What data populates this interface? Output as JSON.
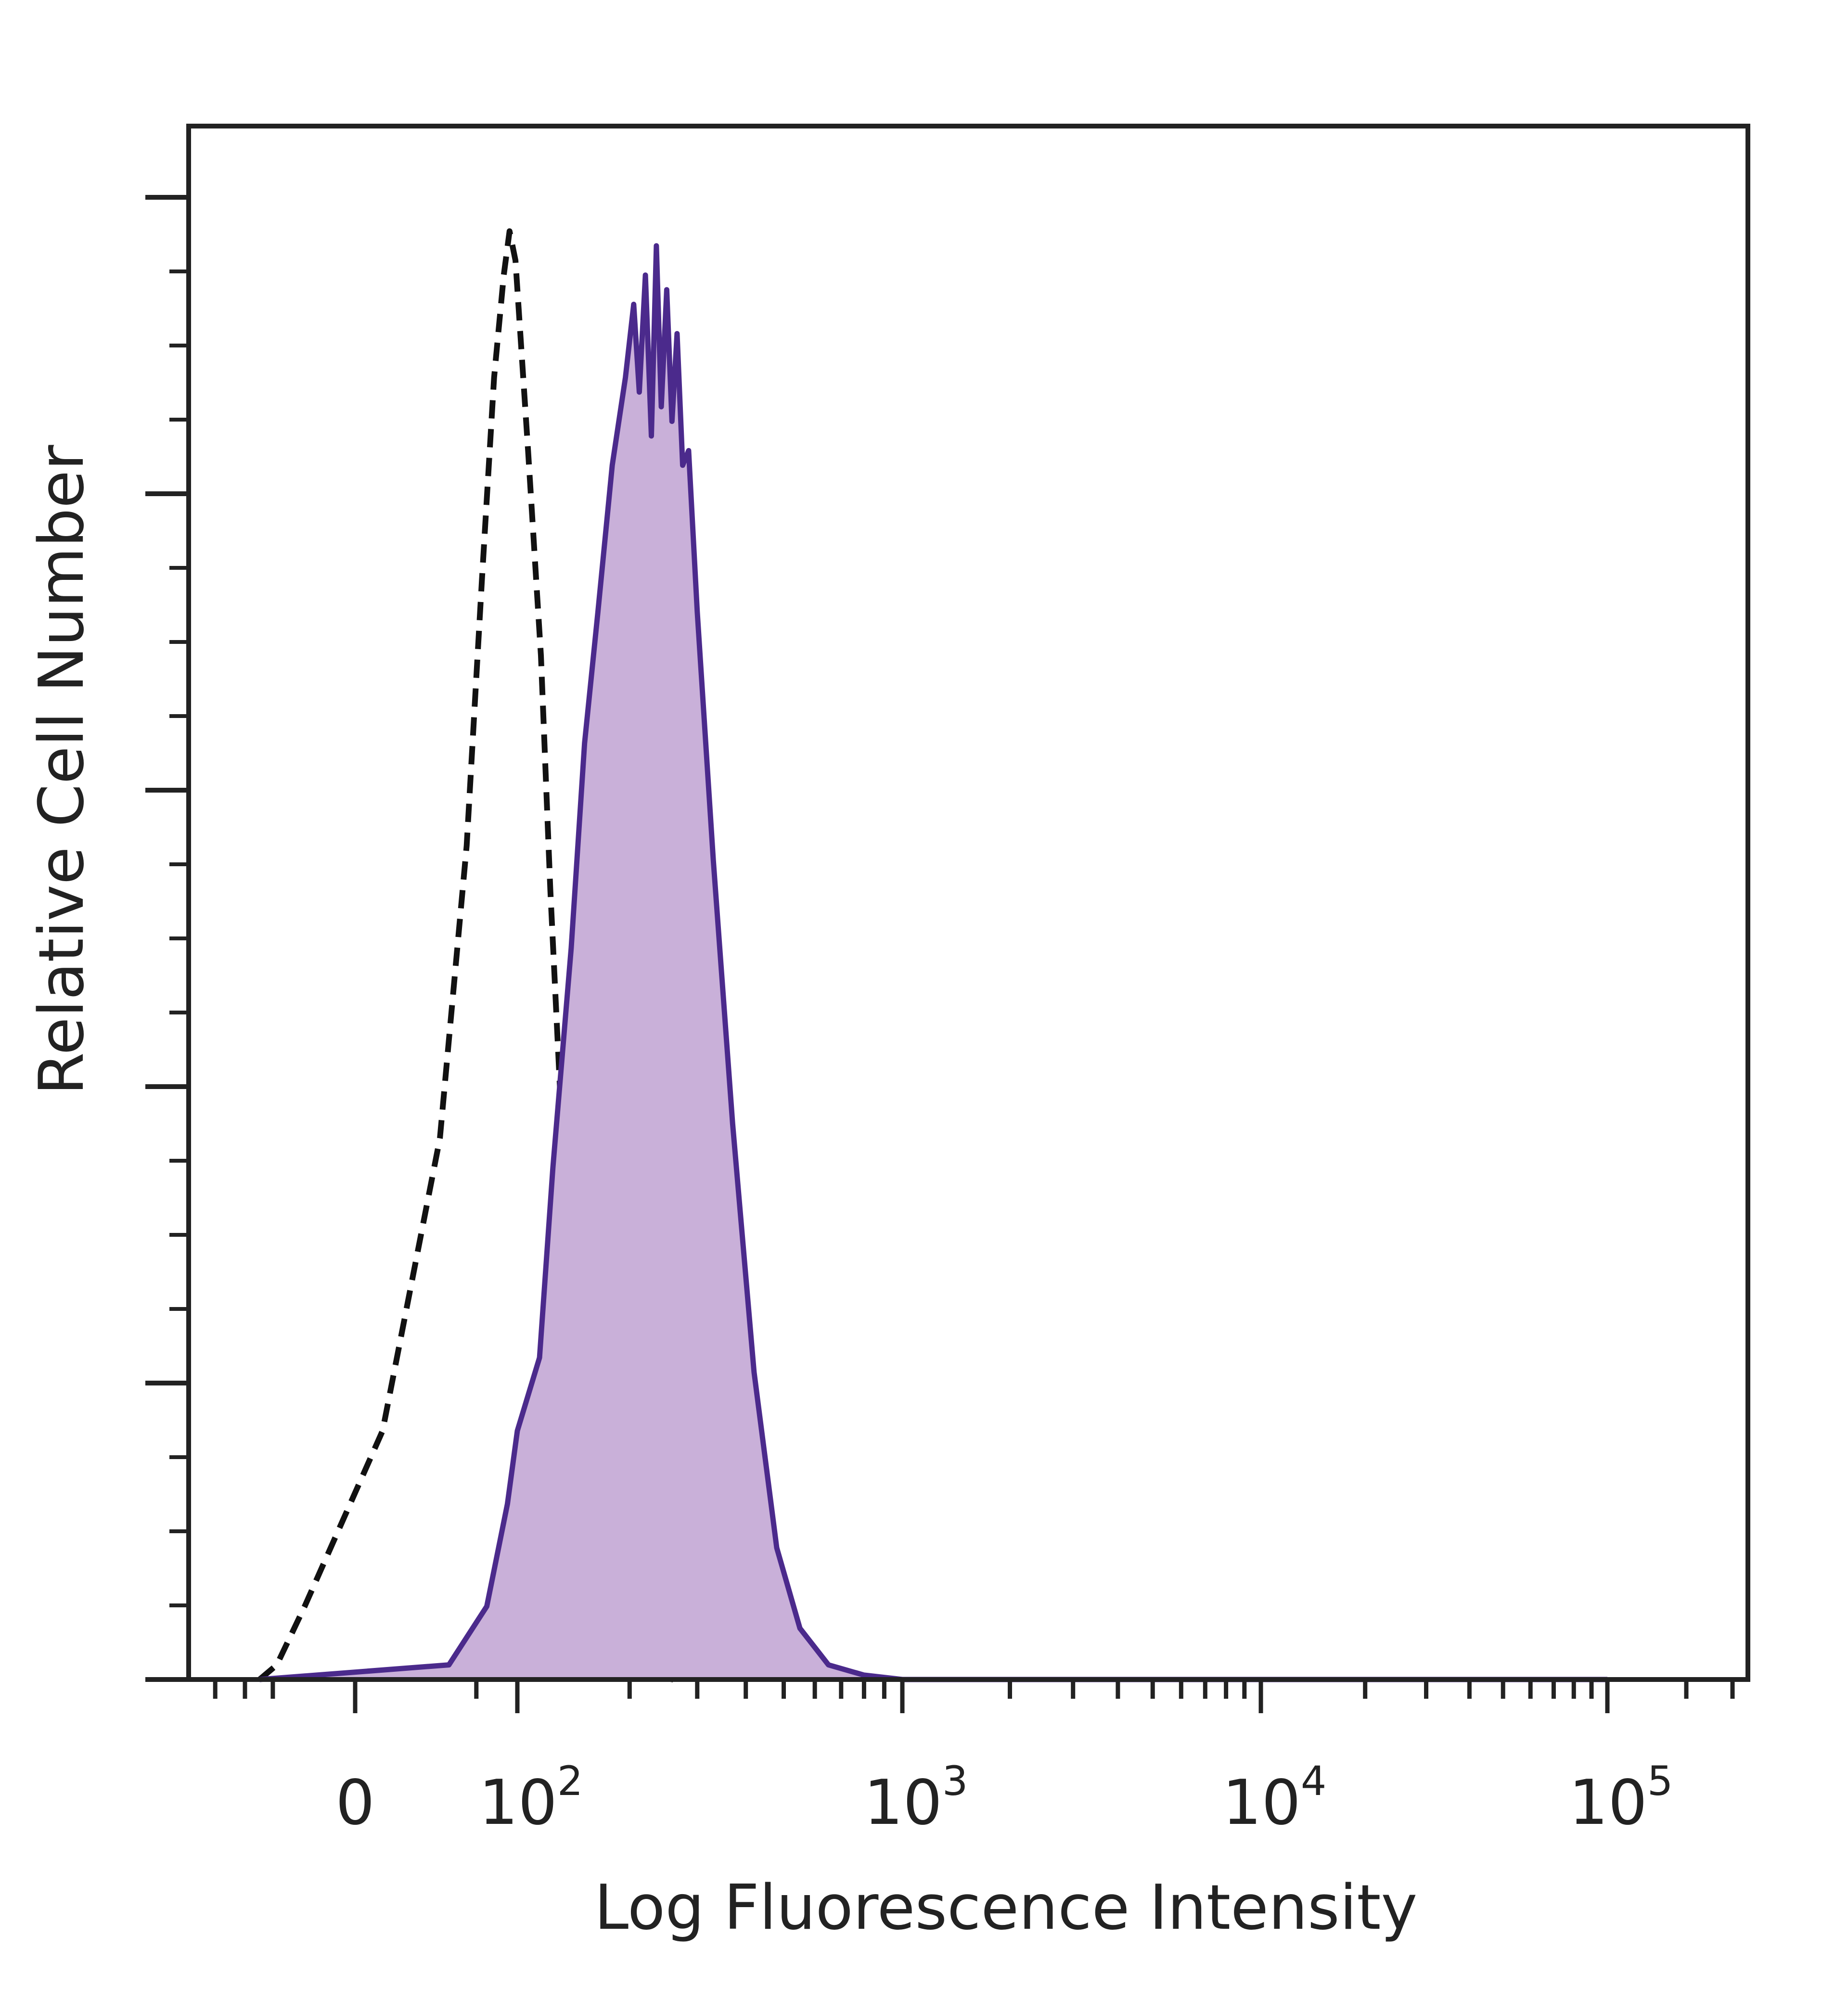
{
  "chart_data": {
    "type": "area",
    "xlabel": "Log Fluorescence Intensity",
    "ylabel": "Relative Cell Number",
    "x_scale": "biexponential (logicle)",
    "ylim": [
      0,
      1
    ],
    "x_ticks": [
      {
        "value": 0,
        "base": "0",
        "exp": ""
      },
      {
        "value": 100,
        "base": "10",
        "exp": "2"
      },
      {
        "value": 1000,
        "base": "10",
        "exp": "3"
      },
      {
        "value": 10000,
        "base": "10",
        "exp": "4"
      },
      {
        "value": 100000,
        "base": "10",
        "exp": "5"
      }
    ],
    "grid": false,
    "legend": "none",
    "series": [
      {
        "style": "dashed",
        "color": "#111111",
        "fill": "none",
        "points": [
          [
            -70,
            0
          ],
          [
            -45,
            0.01
          ],
          [
            -20,
            0.05
          ],
          [
            5,
            0.17
          ],
          [
            25,
            0.37
          ],
          [
            42,
            0.57
          ],
          [
            55,
            0.75
          ],
          [
            68,
            0.89
          ],
          [
            80,
            0.96
          ],
          [
            88,
            0.99
          ],
          [
            97,
            0.97
          ],
          [
            107,
            0.84
          ],
          [
            116,
            0.7
          ],
          [
            123,
            0.54
          ],
          [
            132,
            0.38
          ],
          [
            142,
            0.22
          ],
          [
            155,
            0.1
          ],
          [
            175,
            0.03
          ],
          [
            200,
            0.005
          ],
          [
            260,
            0
          ]
        ]
      },
      {
        "style": "solid",
        "color": "#4b2a8c",
        "fill": "#c9b0d9",
        "points": [
          [
            -70,
            0
          ],
          [
            30,
            0.01
          ],
          [
            60,
            0.05
          ],
          [
            85,
            0.12
          ],
          [
            100,
            0.17
          ],
          [
            115,
            0.22
          ],
          [
            125,
            0.35
          ],
          [
            140,
            0.5
          ],
          [
            152,
            0.64
          ],
          [
            165,
            0.73
          ],
          [
            180,
            0.83
          ],
          [
            195,
            0.89
          ],
          [
            205,
            0.94
          ],
          [
            212,
            0.88
          ],
          [
            220,
            0.96
          ],
          [
            228,
            0.85
          ],
          [
            235,
            0.98
          ],
          [
            242,
            0.87
          ],
          [
            250,
            0.95
          ],
          [
            258,
            0.86
          ],
          [
            266,
            0.92
          ],
          [
            275,
            0.83
          ],
          [
            285,
            0.84
          ],
          [
            300,
            0.73
          ],
          [
            330,
            0.56
          ],
          [
            370,
            0.38
          ],
          [
            420,
            0.21
          ],
          [
            480,
            0.09
          ],
          [
            550,
            0.035
          ],
          [
            650,
            0.01
          ],
          [
            800,
            0.003
          ],
          [
            1000,
            0
          ],
          [
            100000,
            0
          ]
        ]
      }
    ]
  }
}
